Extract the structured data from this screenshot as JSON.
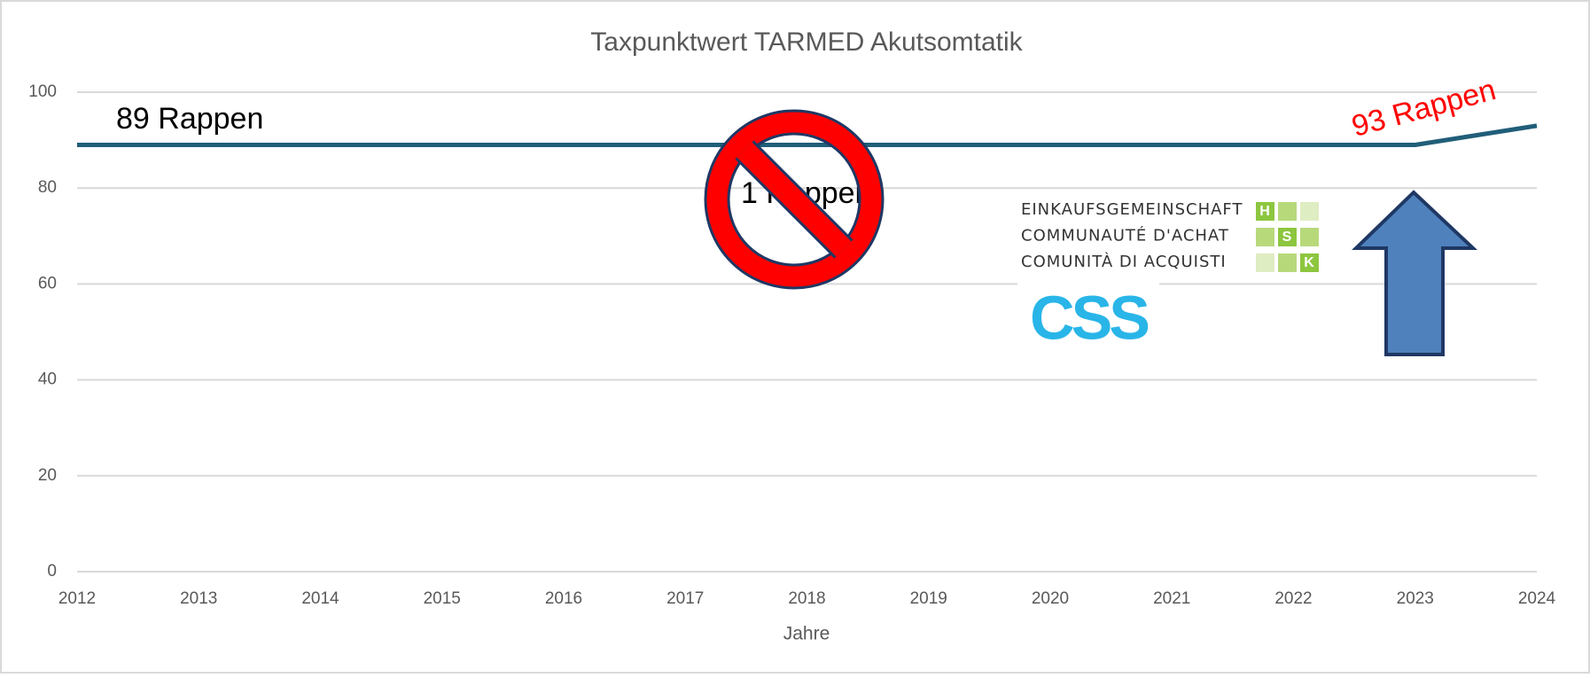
{
  "chart_data": {
    "type": "line",
    "title": "Taxpunktwert TARMED Akutsomtatik",
    "x_label": "Jahre",
    "x": [
      2012,
      2013,
      2014,
      2015,
      2016,
      2017,
      2018,
      2019,
      2020,
      2021,
      2022,
      2023,
      2024
    ],
    "series": [
      {
        "name": "Taxpunktwert",
        "color": "#215e79",
        "values": [
          89,
          89,
          89,
          89,
          89,
          89,
          89,
          89,
          89,
          89,
          89,
          89,
          93
        ]
      }
    ],
    "xlim": [
      2012,
      2024
    ],
    "xticks": [
      2012,
      2013,
      2014,
      2015,
      2016,
      2017,
      2018,
      2019,
      2020,
      2021,
      2022,
      2023,
      2024
    ],
    "ylim": [
      0,
      100
    ],
    "yticks": [
      0,
      20,
      40,
      60,
      80,
      100
    ],
    "grid": true,
    "annotations": [
      "89 Rappen",
      "1 Rappen",
      "93 Rappen"
    ],
    "logos": {
      "hsk_lines": [
        "EINKAUFSGEMEINSCHAFT",
        "COMMUNAUTÉ D'ACHAT",
        "COMUNITÀ DI ACQUISTI"
      ],
      "hsk_letters": [
        "H",
        "S",
        "K"
      ],
      "css": "CSS"
    }
  }
}
